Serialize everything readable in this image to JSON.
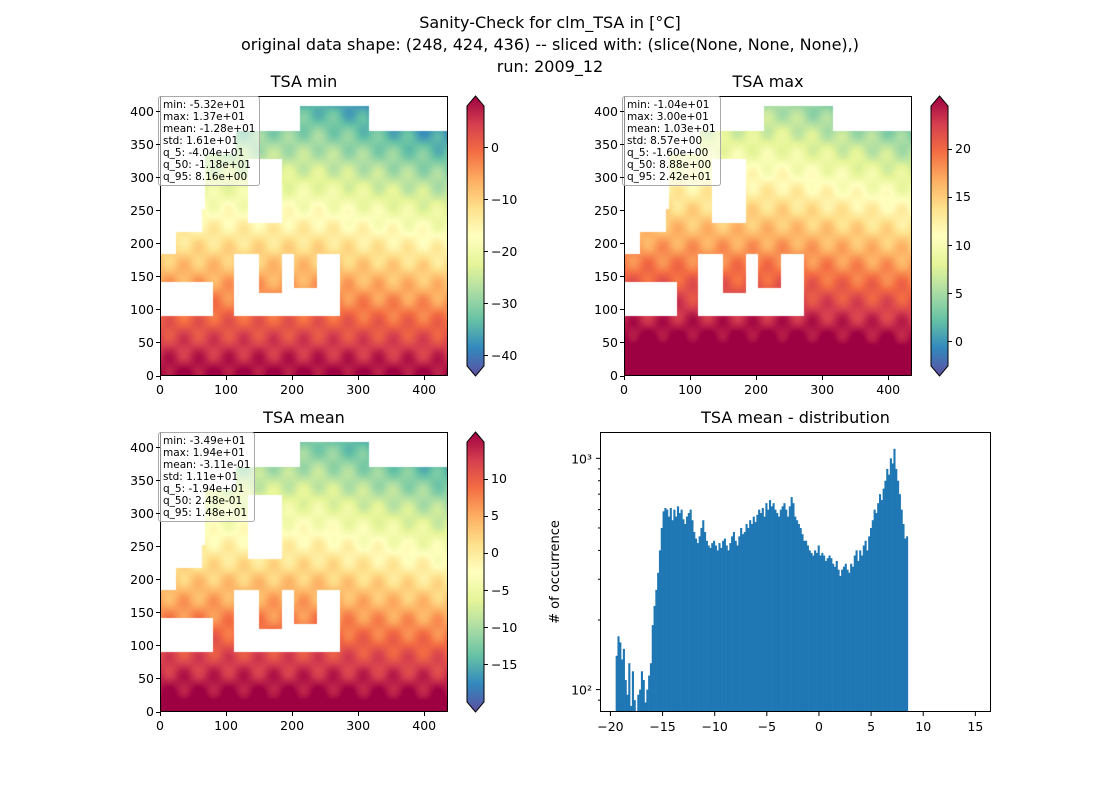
{
  "figure": {
    "title_line1": "Sanity-Check for clm_TSA in [°C]",
    "title_line2": "original data shape: (248, 424, 436) -- sliced with: (slice(None, None, None),)",
    "title_line3": "run: 2009_12"
  },
  "chart_data": [
    {
      "type": "heatmap",
      "title": "TSA min",
      "xlim": [
        0,
        436
      ],
      "ylim": [
        0,
        424
      ],
      "xticks": [
        "0",
        "100",
        "200",
        "300",
        "400"
      ],
      "yticks": [
        "0",
        "50",
        "100",
        "150",
        "200",
        "250",
        "300",
        "350",
        "400"
      ],
      "colorbar": {
        "cmap": "Spectral_r",
        "range": [
          -42,
          8
        ],
        "ticks": [
          "0",
          "−10",
          "−20",
          "−30",
          "−40"
        ],
        "tick_values": [
          0,
          -10,
          -20,
          -30,
          -40
        ]
      },
      "stats": [
        "min: -5.32e+01",
        "max: 1.37e+01",
        "mean: -1.28e+01",
        "std: 1.61e+01",
        "q_5: -4.04e+01",
        "q_50: -1.18e+01",
        "q_95: 8.16e+00"
      ]
    },
    {
      "type": "heatmap",
      "title": "TSA max",
      "xlim": [
        0,
        436
      ],
      "ylim": [
        0,
        424
      ],
      "xticks": [
        "0",
        "100",
        "200",
        "300",
        "400"
      ],
      "yticks": [
        "0",
        "50",
        "100",
        "150",
        "200",
        "250",
        "300",
        "350",
        "400"
      ],
      "colorbar": {
        "cmap": "Spectral_r",
        "range": [
          -2.5,
          24.5
        ],
        "ticks": [
          "20",
          "15",
          "10",
          "5",
          "0"
        ],
        "tick_values": [
          20,
          15,
          10,
          5,
          0
        ]
      },
      "stats": [
        "min: -1.04e+01",
        "max: 3.00e+01",
        "mean: 1.03e+01",
        "std: 8.57e+00",
        "q_5: -1.60e+00",
        "q_50: 8.88e+00",
        "q_95: 2.42e+01"
      ]
    },
    {
      "type": "heatmap",
      "title": "TSA mean",
      "xlim": [
        0,
        436
      ],
      "ylim": [
        0,
        424
      ],
      "xticks": [
        "0",
        "100",
        "200",
        "300",
        "400"
      ],
      "yticks": [
        "0",
        "50",
        "100",
        "150",
        "200",
        "250",
        "300",
        "350",
        "400"
      ],
      "colorbar": {
        "cmap": "Spectral_r",
        "range": [
          -20,
          15
        ],
        "ticks": [
          "10",
          "5",
          "0",
          "−5",
          "−10",
          "−15"
        ],
        "tick_values": [
          10,
          5,
          0,
          -5,
          -10,
          -15
        ]
      },
      "stats": [
        "min: -3.49e+01",
        "max: 1.94e+01",
        "mean: -3.11e-01",
        "std: 1.11e+01",
        "q_5: -1.94e+01",
        "q_50: 2.48e-01",
        "q_95: 1.48e+01"
      ]
    },
    {
      "type": "bar",
      "title": "TSA mean - distribution",
      "ylabel": "# of occurrence",
      "xlabel": "",
      "yscale": "log",
      "xlim": [
        -21,
        16.5
      ],
      "ylim": [
        80,
        1300
      ],
      "xticks": [
        -20,
        -15,
        -10,
        -5,
        0,
        5,
        10,
        15
      ],
      "xtick_labels": [
        "−20",
        "−15",
        "−10",
        "−5",
        "0",
        "5",
        "10",
        "15"
      ],
      "yticks": [
        100,
        1000
      ],
      "ytick_labels": [
        "10²",
        "10³"
      ],
      "bin_start": -19.5,
      "bin_width": 0.173,
      "color": "#1f77b4",
      "values": [
        140,
        170,
        160,
        135,
        150,
        110,
        95,
        130,
        85,
        120,
        90,
        80,
        95,
        100,
        120,
        110,
        88,
        100,
        115,
        130,
        190,
        230,
        270,
        320,
        400,
        500,
        590,
        610,
        600,
        560,
        610,
        540,
        600,
        560,
        620,
        580,
        600,
        545,
        520,
        560,
        580,
        600,
        540,
        480,
        450,
        430,
        460,
        500,
        540,
        480,
        440,
        420,
        410,
        430,
        440,
        420,
        400,
        430,
        410,
        440,
        450,
        420,
        400,
        430,
        460,
        480,
        440,
        420,
        460,
        500,
        470,
        480,
        520,
        500,
        540,
        520,
        560,
        530,
        570,
        600,
        580,
        610,
        560,
        640,
        600,
        660,
        620,
        640,
        600,
        580,
        560,
        600,
        620,
        640,
        600,
        560,
        620,
        680,
        640,
        560,
        540,
        520,
        500,
        470,
        440,
        440,
        420,
        400,
        390,
        380,
        400,
        390,
        420,
        380,
        390,
        380,
        360,
        370,
        380,
        370,
        350,
        340,
        360,
        330,
        310,
        330,
        340,
        350,
        330,
        320,
        350,
        340,
        380,
        400,
        360,
        400,
        380,
        420,
        440,
        400,
        460,
        500,
        540,
        600,
        580,
        640,
        700,
        660,
        740,
        800,
        900,
        850,
        1000,
        950,
        1100,
        900,
        800,
        700,
        600,
        520,
        450,
        460
      ]
    }
  ]
}
